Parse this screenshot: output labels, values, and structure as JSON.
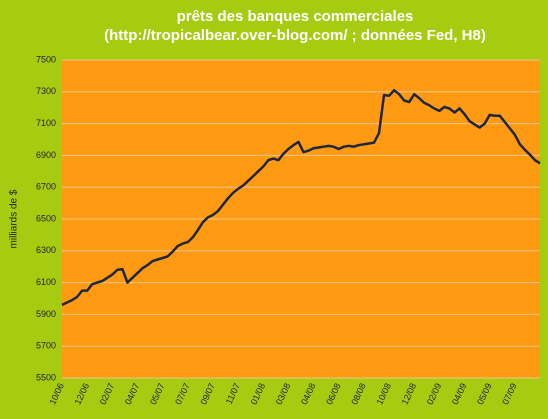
{
  "chart_data": {
    "type": "line",
    "title": "prêts des banques commerciales",
    "subtitle": "(http://tropicalbear.over-blog.com/ ; données Fed, H8)",
    "y_label": "milliards de $",
    "categories": [
      "10/06",
      null,
      null,
      null,
      null,
      "12/06",
      null,
      null,
      null,
      null,
      "02/07",
      null,
      null,
      null,
      null,
      "04/07",
      null,
      null,
      null,
      null,
      "05/07",
      null,
      null,
      null,
      null,
      "07/07",
      null,
      null,
      null,
      null,
      "09/07",
      null,
      null,
      null,
      null,
      "11/07",
      null,
      null,
      null,
      null,
      "01/08",
      null,
      null,
      null,
      null,
      "03/08",
      null,
      null,
      null,
      null,
      "04/08",
      null,
      null,
      null,
      null,
      "06/08",
      null,
      null,
      null,
      null,
      "08/08",
      null,
      null,
      null,
      null,
      "10/08",
      null,
      null,
      null,
      null,
      "12/08",
      null,
      null,
      null,
      null,
      "02/09",
      null,
      null,
      null,
      null,
      "04/09",
      null,
      null,
      null,
      null,
      "05/09",
      null,
      null,
      null,
      null,
      "07/09",
      null,
      null,
      null,
      null,
      null
    ],
    "series": [
      {
        "name": "prêts",
        "color": "#1f2640",
        "values": [
          5960,
          5975,
          5990,
          6010,
          6050,
          6050,
          6090,
          6100,
          6110,
          6130,
          6150,
          6180,
          6185,
          6100,
          6130,
          6160,
          6190,
          6210,
          6235,
          6245,
          6255,
          6265,
          6295,
          6330,
          6345,
          6355,
          6385,
          6430,
          6480,
          6510,
          6525,
          6550,
          6590,
          6630,
          6665,
          6690,
          6710,
          6740,
          6770,
          6800,
          6830,
          6870,
          6880,
          6870,
          6910,
          6940,
          6965,
          6985,
          6920,
          6930,
          6945,
          6950,
          6955,
          6960,
          6955,
          6940,
          6955,
          6960,
          6955,
          6965,
          6970,
          6975,
          6980,
          7040,
          7280,
          7275,
          7310,
          7285,
          7245,
          7235,
          7285,
          7260,
          7230,
          7215,
          7195,
          7180,
          7205,
          7195,
          7170,
          7195,
          7160,
          7115,
          7095,
          7075,
          7100,
          7155,
          7150,
          7150,
          7110,
          7070,
          7030,
          6970,
          6935,
          6905,
          6870,
          6850
        ]
      }
    ],
    "ylim": [
      5500,
      7500
    ],
    "yticks": [
      5500,
      5700,
      5900,
      6100,
      6300,
      6500,
      6700,
      6900,
      7100,
      7300,
      7500
    ],
    "grid": true
  }
}
